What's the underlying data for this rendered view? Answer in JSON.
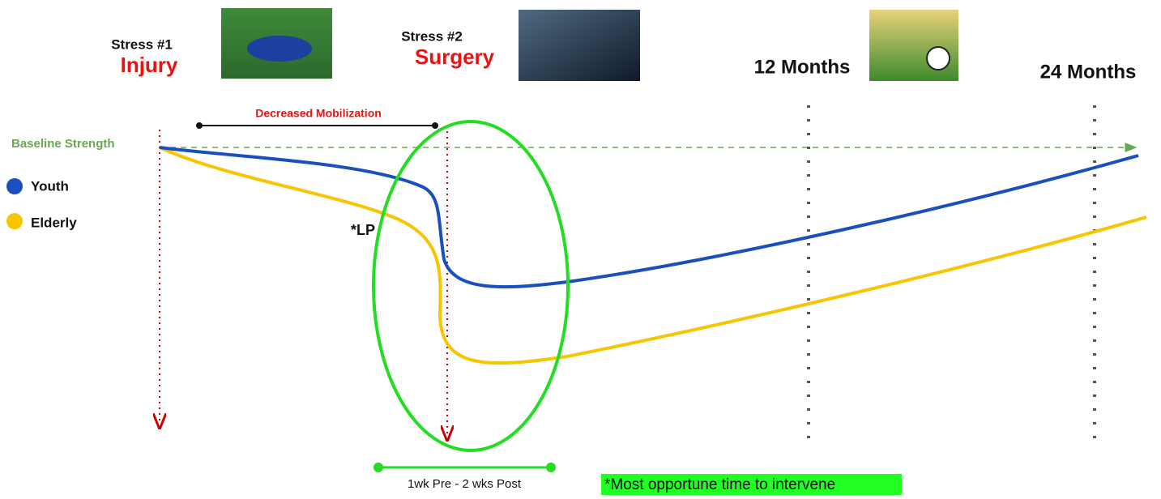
{
  "stresses": [
    {
      "label": "Stress #1",
      "event": "Injury"
    },
    {
      "label": "Stress #2",
      "event": "Surgery"
    }
  ],
  "milestones": [
    "12 Months",
    "24 Months"
  ],
  "annotations": {
    "decreased_mobilization": "Decreased Mobilization",
    "baseline": "Baseline Strength",
    "lp": "*LP",
    "window": "1wk Pre - 2 wks Post",
    "note": "*Most opportune time to intervene"
  },
  "legend": [
    {
      "name": "Youth",
      "color": "#1a4fbf"
    },
    {
      "name": "Elderly",
      "color": "#f7c600"
    }
  ]
}
